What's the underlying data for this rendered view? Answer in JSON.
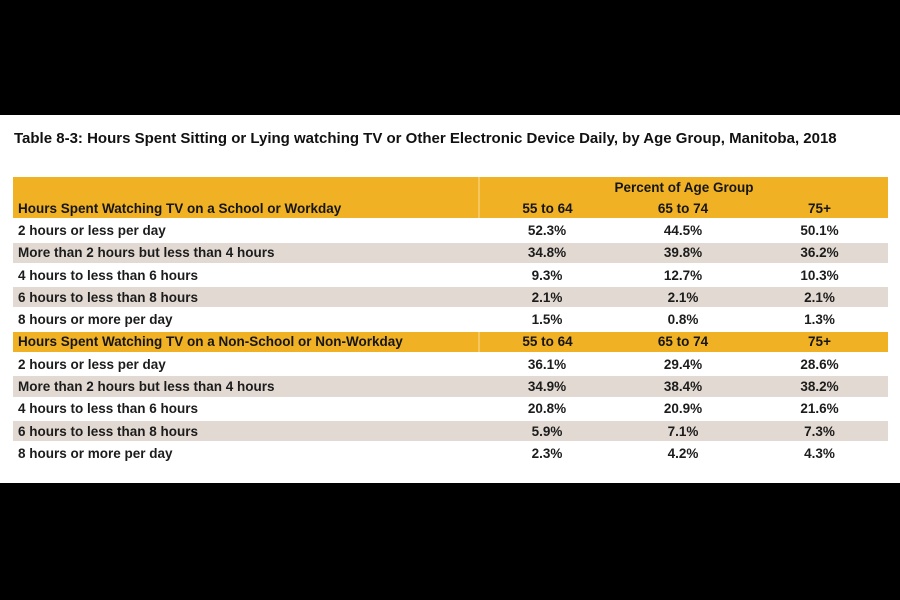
{
  "page": {
    "title": "Table 8-3: Hours Spent Sitting or Lying watching TV or Other Electronic Device Daily, by Age Group, Manitoba, 2018"
  },
  "colors": {
    "header_gold": "#F0B125",
    "stripe_beige": "#E2DAD2",
    "panel_white": "#FFFFFF",
    "letterbox_black": "#000000",
    "text": "#1A1A1A"
  },
  "table": {
    "group_header": "Percent of Age Group",
    "age_columns": [
      "55 to 64",
      "65 to 74",
      "75+"
    ],
    "sections": [
      {
        "header": "Hours Spent Watching TV on a School or Workday",
        "rows": [
          {
            "label": "2 hours or less per day",
            "values": [
              "52.3%",
              "44.5%",
              "50.1%"
            ]
          },
          {
            "label": "More than 2 hours but less than 4 hours",
            "values": [
              "34.8%",
              "39.8%",
              "36.2%"
            ]
          },
          {
            "label": "4 hours to less than 6 hours",
            "values": [
              "9.3%",
              "12.7%",
              "10.3%"
            ]
          },
          {
            "label": "6 hours to less than 8 hours",
            "values": [
              "2.1%",
              "2.1%",
              "2.1%"
            ]
          },
          {
            "label": "8 hours or more per day",
            "values": [
              "1.5%",
              "0.8%",
              "1.3%"
            ]
          }
        ]
      },
      {
        "header": "Hours Spent Watching TV on a Non-School or Non-Workday",
        "rows": [
          {
            "label": "2 hours or less per day",
            "values": [
              "36.1%",
              "29.4%",
              "28.6%"
            ]
          },
          {
            "label": "More than 2 hours but less than 4 hours",
            "values": [
              "34.9%",
              "38.4%",
              "38.2%"
            ]
          },
          {
            "label": "4 hours to less than 6 hours",
            "values": [
              "20.8%",
              "20.9%",
              "21.6%"
            ]
          },
          {
            "label": "6 hours to less than 8 hours",
            "values": [
              "5.9%",
              "7.1%",
              "7.3%"
            ]
          },
          {
            "label": "8 hours or more per day",
            "values": [
              "2.3%",
              "4.2%",
              "4.3%"
            ]
          }
        ]
      }
    ]
  },
  "chart_data": {
    "type": "table",
    "title": "Table 8-3: Hours Spent Sitting or Lying watching TV or Other Electronic Device Daily, by Age Group, Manitoba, 2018",
    "units": "percent of age group",
    "column_group_label": "Percent of Age Group",
    "columns": [
      "55 to 64",
      "65 to 74",
      "75+"
    ],
    "sections": [
      {
        "header": "Hours Spent Watching TV on a School or Workday",
        "rows": [
          {
            "label": "2 hours or less per day",
            "values": [
              52.3,
              44.5,
              50.1
            ]
          },
          {
            "label": "More than 2 hours but less than 4 hours",
            "values": [
              34.8,
              39.8,
              36.2
            ]
          },
          {
            "label": "4 hours to less than 6 hours",
            "values": [
              9.3,
              12.7,
              10.3
            ]
          },
          {
            "label": "6 hours to less than 8 hours",
            "values": [
              2.1,
              2.1,
              2.1
            ]
          },
          {
            "label": "8 hours or more per day",
            "values": [
              1.5,
              0.8,
              1.3
            ]
          }
        ]
      },
      {
        "header": "Hours Spent Watching TV on a Non-School or Non-Workday",
        "rows": [
          {
            "label": "2 hours or less per day",
            "values": [
              36.1,
              29.4,
              28.6
            ]
          },
          {
            "label": "More than 2 hours but less than 4 hours",
            "values": [
              34.9,
              38.4,
              38.2
            ]
          },
          {
            "label": "4 hours to less than 6 hours",
            "values": [
              20.8,
              20.9,
              21.6
            ]
          },
          {
            "label": "6 hours to less than 8 hours",
            "values": [
              5.9,
              7.1,
              7.3
            ]
          },
          {
            "label": "8 hours or more per day",
            "values": [
              2.3,
              4.2,
              4.3
            ]
          }
        ]
      }
    ]
  }
}
